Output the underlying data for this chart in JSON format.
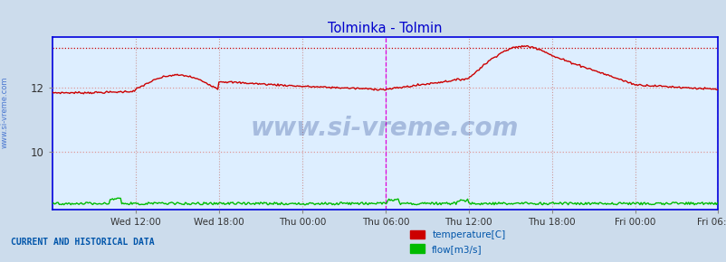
{
  "title": "Tolminka - Tolmin",
  "title_color": "#0000cc",
  "bg_color": "#ccdcec",
  "plot_bg_color": "#ddeeff",
  "border_color": "#0000dd",
  "watermark": "www.si-vreme.com",
  "watermark_color": "#1a3a8a",
  "x_tick_labels": [
    "Wed 12:00",
    "Wed 18:00",
    "Thu 00:00",
    "Thu 06:00",
    "Thu 12:00",
    "Thu 18:00",
    "Fri 00:00",
    "Fri 06:00"
  ],
  "yticks": [
    10,
    12
  ],
  "ylim": [
    8.2,
    13.6
  ],
  "n_points": 576,
  "temp_color": "#cc0000",
  "flow_color": "#00bb00",
  "vline_color": "#dd00dd",
  "hline_color": "#cc0000",
  "grid_h_color": "#dd9999",
  "grid_v_color": "#cc9999",
  "dotted_line_y": 13.25,
  "current_and_historical": "CURRENT AND HISTORICAL DATA",
  "legend_temp": "temperature[C]",
  "legend_flow": "flow[m3/s]",
  "legend_color": "#0055aa",
  "bottom_text_color": "#0055aa",
  "sidebar_text": "www.si-vreme.com",
  "sidebar_color": "#3366cc",
  "flow_base": 8.35,
  "tick_positions": [
    72,
    144,
    216,
    288,
    360,
    432,
    504,
    575
  ]
}
